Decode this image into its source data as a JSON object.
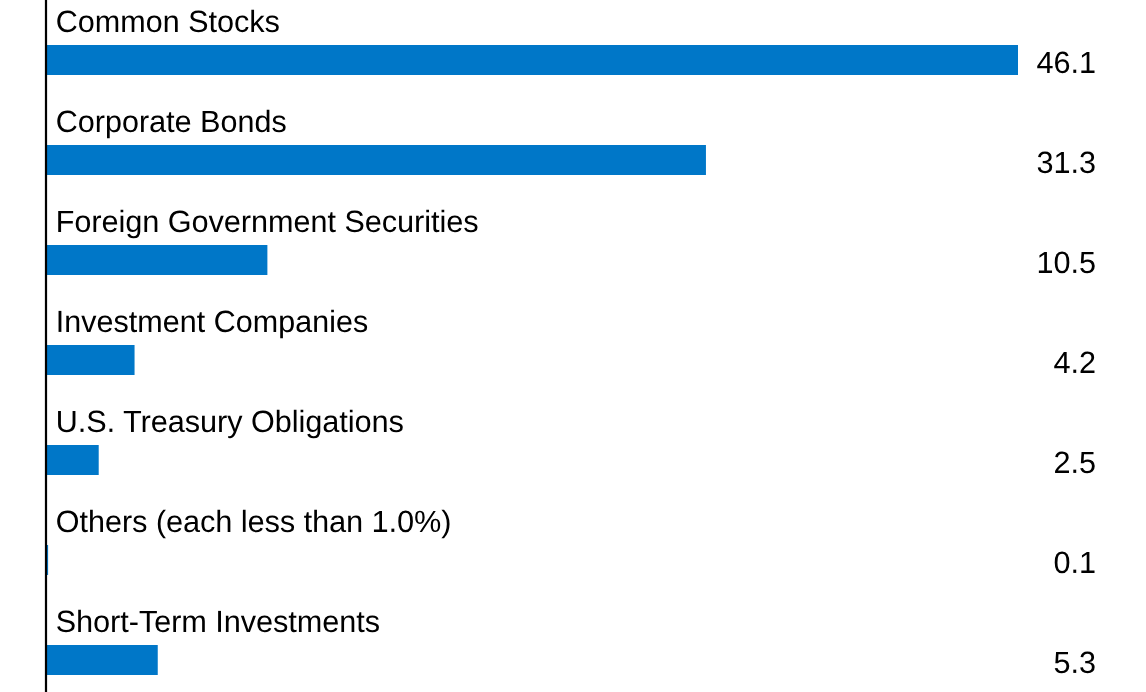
{
  "chart_data": {
    "type": "bar",
    "orientation": "horizontal",
    "categories": [
      "Common Stocks",
      "Corporate Bonds",
      "Foreign Government Securities",
      "Investment Companies",
      "U.S. Treasury Obligations",
      "Others (each less than 1.0%)",
      "Short-Term Investments"
    ],
    "values": [
      46.1,
      31.3,
      10.5,
      4.2,
      2.5,
      0.1,
      5.3
    ],
    "color": "#0077c8",
    "data_labels": true
  }
}
